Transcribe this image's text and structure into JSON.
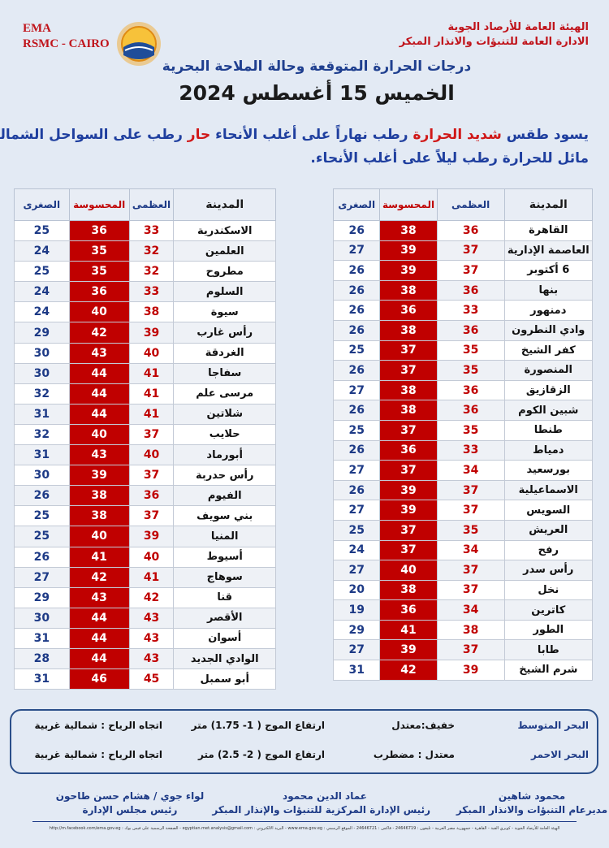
{
  "header": {
    "org_lines": [
      "الهيئة العامة للأرصاد الجوية",
      "الادارة العامة للتنبؤات والانذار المبكر"
    ],
    "agency_lines": [
      "EMA",
      "RSMC - CAIRO"
    ],
    "title": "درجات الحرارة المتوقعة وحالة الملاحة البحرية",
    "date": "الخميس 15  أغسطس 2024"
  },
  "forecast": [
    [
      {
        "text": "يسود طقس ",
        "color": "#1f3f9f"
      },
      {
        "text": "شديد الحرارة",
        "color": "#d01818"
      },
      {
        "text": " رطب نهاراً على أغلب الأنحاء ",
        "color": "#1f3f9f"
      },
      {
        "text": "حار",
        "color": "#d01818"
      },
      {
        "text": " رطب على السواحل الشمالية",
        "color": "#1f3f9f"
      }
    ],
    [
      {
        "text": "مائل للحرارة رطب ليلاً على أغلب الأنحاء.",
        "color": "#1f3f9f"
      }
    ]
  ],
  "tables": [
    {
      "columns": {
        "city": "المدينة",
        "max": "العظمى",
        "feels": "المحسوسة",
        "min": "الصغرى"
      },
      "rows": [
        {
          "city": "القاهرة",
          "max": 36,
          "feels": 38,
          "min": 26
        },
        {
          "city": "العاصمة الإدارية",
          "max": 37,
          "feels": 39,
          "min": 27
        },
        {
          "city": "6 أكتوبر",
          "max": 37,
          "feels": 39,
          "min": 26
        },
        {
          "city": "بنها",
          "max": 36,
          "feels": 38,
          "min": 26
        },
        {
          "city": "دمنهور",
          "max": 33,
          "feels": 36,
          "min": 26
        },
        {
          "city": "وادي النطرون",
          "max": 36,
          "feels": 38,
          "min": 26
        },
        {
          "city": "كفر الشيخ",
          "max": 35,
          "feels": 37,
          "min": 25
        },
        {
          "city": "المنصورة",
          "max": 35,
          "feels": 37,
          "min": 26
        },
        {
          "city": "الزقازيق",
          "max": 36,
          "feels": 38,
          "min": 27
        },
        {
          "city": "شبين الكوم",
          "max": 36,
          "feels": 38,
          "min": 26
        },
        {
          "city": "طنطا",
          "max": 35,
          "feels": 37,
          "min": 25
        },
        {
          "city": "دمياط",
          "max": 33,
          "feels": 36,
          "min": 26
        },
        {
          "city": "بورسعيد",
          "max": 34,
          "feels": 37,
          "min": 27
        },
        {
          "city": "الاسماعيلية",
          "max": 37,
          "feels": 39,
          "min": 26
        },
        {
          "city": "السويس",
          "max": 37,
          "feels": 39,
          "min": 27
        },
        {
          "city": "العريش",
          "max": 35,
          "feels": 37,
          "min": 25
        },
        {
          "city": "رفح",
          "max": 34,
          "feels": 37,
          "min": 24
        },
        {
          "city": "رأس سدر",
          "max": 37,
          "feels": 40,
          "min": 27
        },
        {
          "city": "نخل",
          "max": 37,
          "feels": 38,
          "min": 20
        },
        {
          "city": "كاترين",
          "max": 34,
          "feels": 36,
          "min": 19
        },
        {
          "city": "الطور",
          "max": 38,
          "feels": 41,
          "min": 29
        },
        {
          "city": "طابا",
          "max": 37,
          "feels": 39,
          "min": 27
        },
        {
          "city": "شرم الشيخ",
          "max": 39,
          "feels": 42,
          "min": 31
        }
      ]
    },
    {
      "columns": {
        "city": "المدينة",
        "max": "العظمى",
        "feels": "المحسوسة",
        "min": "الصغرى"
      },
      "rows": [
        {
          "city": "الاسكندرية",
          "max": 33,
          "feels": 36,
          "min": 25
        },
        {
          "city": "العلمين",
          "max": 32,
          "feels": 35,
          "min": 24
        },
        {
          "city": "مطروح",
          "max": 32,
          "feels": 35,
          "min": 25
        },
        {
          "city": "السلوم",
          "max": 33,
          "feels": 36,
          "min": 24
        },
        {
          "city": "سيوة",
          "max": 38,
          "feels": 40,
          "min": 24
        },
        {
          "city": "رأس غارب",
          "max": 39,
          "feels": 42,
          "min": 29
        },
        {
          "city": "الغردقة",
          "max": 40,
          "feels": 43,
          "min": 30
        },
        {
          "city": "سفاجا",
          "max": 41,
          "feels": 44,
          "min": 30
        },
        {
          "city": "مرسى علم",
          "max": 41,
          "feels": 44,
          "min": 32
        },
        {
          "city": "شلاتين",
          "max": 41,
          "feels": 44,
          "min": 31
        },
        {
          "city": "حلايب",
          "max": 37,
          "feels": 40,
          "min": 32
        },
        {
          "city": "أبورماد",
          "max": 40,
          "feels": 43,
          "min": 31
        },
        {
          "city": "رأس حدربة",
          "max": 37,
          "feels": 39,
          "min": 30
        },
        {
          "city": "الفيوم",
          "max": 36,
          "feels": 38,
          "min": 26
        },
        {
          "city": "بني سويف",
          "max": 37,
          "feels": 38,
          "min": 25
        },
        {
          "city": "المنيا",
          "max": 39,
          "feels": 40,
          "min": 25
        },
        {
          "city": "أسيوط",
          "max": 40,
          "feels": 41,
          "min": 26
        },
        {
          "city": "سوهاج",
          "max": 41,
          "feels": 42,
          "min": 27
        },
        {
          "city": "قنا",
          "max": 42,
          "feels": 43,
          "min": 29
        },
        {
          "city": "الأقصر",
          "max": 43,
          "feels": 44,
          "min": 30
        },
        {
          "city": "أسوان",
          "max": 43,
          "feels": 44,
          "min": 31
        },
        {
          "city": "الوادي الجديد",
          "max": 43,
          "feels": 44,
          "min": 28
        },
        {
          "city": "أبو سمبل",
          "max": 45,
          "feels": 46,
          "min": 31
        }
      ]
    }
  ],
  "marine": [
    {
      "sea": "البحر المتوسط",
      "state": "خفيف:معتدل",
      "waves": "ارتفاع الموج ( 1- 1.75) متر",
      "wind": "اتجاه الرياح : شمالية غربية"
    },
    {
      "sea": "البحر الاحمر",
      "state": "معتدل : مضطرب",
      "waves": "ارتفاع الموج ( 2- 2.5) متر",
      "wind": "اتجاه الرياح : شمالية غربية"
    }
  ],
  "signatures": [
    {
      "name": "محمود شاهين",
      "role": "مديرعام التنبؤات والانذار المبكر"
    },
    {
      "name": "عماد الدين محمود",
      "role": "رئيس الإدارة المركزية للتنبؤات والإنذار المبكر"
    },
    {
      "name": "لواء جوي / هشام حسن طاحون",
      "role": "رئيس مجلس الإدارة"
    }
  ],
  "footer": "الهيئة العامة للأرصاد الجوية - كوبري القبة - القاهرة - جمهورية مصر العربية - تليفون : 24646719 - فاكس : 24646721 - الموقع الرسمي : www.ema.gov.eg - البريد الالكتروني : egyptian.met.analysis@gmail.com - الصفحة الرسمية على فيس بوك : http://m.facebook.com/ema.gov.eg"
}
